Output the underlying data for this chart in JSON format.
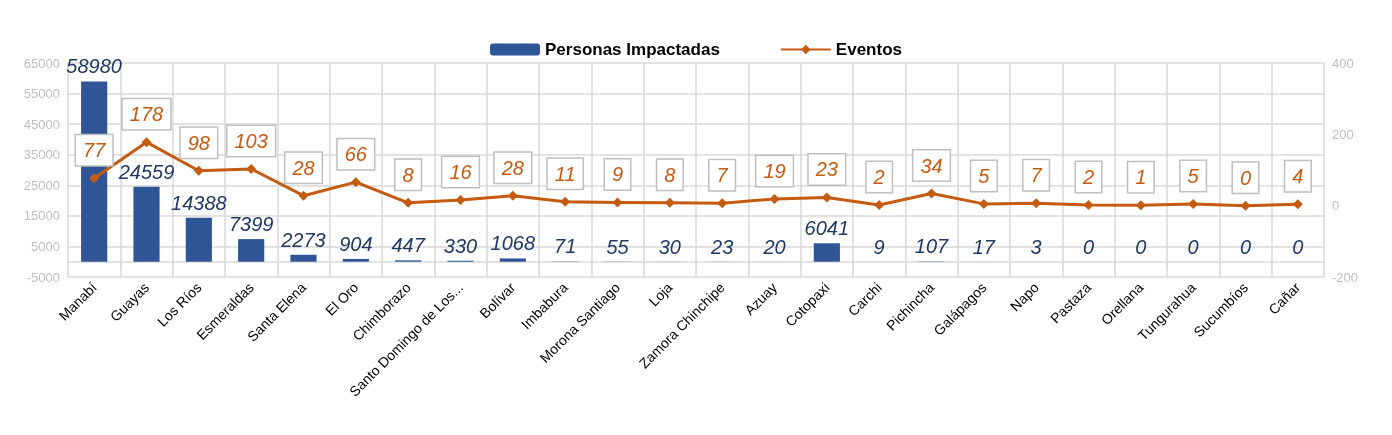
{
  "chart_data": {
    "type": "bar",
    "categories": [
      "Manabí",
      "Guayas",
      "Los Ríos",
      "Esmeraldas",
      "Santa Elena",
      "El Oro",
      "Chimborazo",
      "Santo Domingo de Los...",
      "Bolívar",
      "Imbabura",
      "Morona Santiago",
      "Loja",
      "Zamora Chinchipe",
      "Azuay",
      "Cotopaxi",
      "Carchi",
      "Pichincha",
      "Galápagos",
      "Napo",
      "Pastaza",
      "Orellana",
      "Tungurahua",
      "Sucumbíos",
      "Cañar"
    ],
    "series": [
      {
        "name": "Personas Impactadas",
        "color": "#2f5597",
        "values": [
          58980,
          24559,
          14388,
          7399,
          2273,
          904,
          447,
          330,
          1068,
          71,
          55,
          30,
          23,
          20,
          6041,
          9,
          107,
          17,
          3,
          0,
          0,
          0,
          0,
          0
        ]
      },
      {
        "name": "Eventos",
        "type": "line",
        "axis": "y2",
        "color": "#c55a11",
        "marker": "diamond",
        "values": [
          77,
          178,
          98,
          103,
          28,
          66,
          8,
          16,
          28,
          11,
          9,
          8,
          7,
          19,
          23,
          2,
          34,
          5,
          7,
          2,
          1,
          5,
          0,
          4
        ]
      }
    ],
    "ylim": [
      -5000,
      65000
    ],
    "yticks": [
      -5000,
      5000,
      15000,
      25000,
      35000,
      45000,
      55000,
      65000
    ],
    "y2lim": [
      -200,
      400
    ],
    "y2ticks": [
      -200,
      0,
      200,
      400
    ],
    "grid": true,
    "legend": "top",
    "data_labels": true
  }
}
